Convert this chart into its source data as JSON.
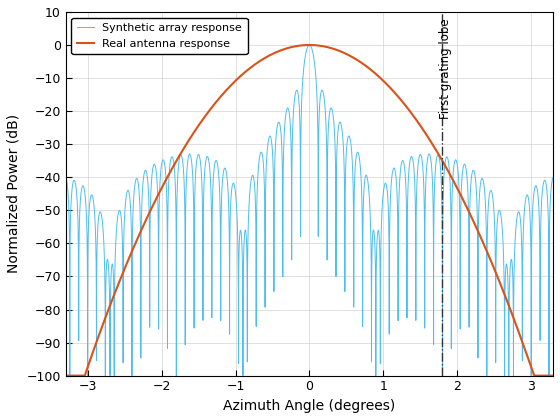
{
  "title": "",
  "xlabel": "Azimuth Angle (degrees)",
  "ylabel": "Normalized Power (dB)",
  "xlim": [
    -3.3,
    3.3
  ],
  "ylim": [
    -100,
    10
  ],
  "yticks": [
    -100,
    -90,
    -80,
    -70,
    -60,
    -50,
    -40,
    -30,
    -20,
    -10,
    0,
    10
  ],
  "xticks": [
    -3,
    -2,
    -1,
    0,
    1,
    2,
    3
  ],
  "grating_lobe_x": 1.8,
  "grating_lobe_label": "First grating lobe",
  "synthetic_color": "#4DBEEE",
  "real_color": "#D95319",
  "vline_color": "#333333",
  "legend_labels": [
    "Synthetic array response",
    "Real antenna response"
  ],
  "fig_width": 5.6,
  "fig_height": 4.2,
  "dpi": 100
}
